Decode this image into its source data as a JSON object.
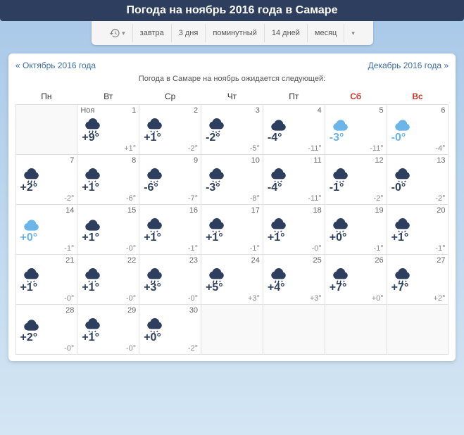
{
  "header": {
    "title": "Погода на ноябрь 2016 года в Самаре"
  },
  "nav": {
    "items": [
      "завтра",
      "3 дня",
      "поминутный",
      "14 дней",
      "месяц"
    ]
  },
  "monthNav": {
    "prev": "« Октябрь 2016 года",
    "next": "Декабрь 2016 года »"
  },
  "subtitle": "Погода в Самаре на ноябрь ожидается следующей:",
  "dayHeaders": [
    "Пн",
    "Вт",
    "Ср",
    "Чт",
    "Пт",
    "Сб",
    "Вс"
  ],
  "monthLabel": "Ноя",
  "colors": {
    "cloudDark": "#2d3e5e",
    "cloudLight": "#6bb5e8",
    "weekend": "#c0392b"
  },
  "days": [
    {
      "date": 1,
      "monthLabel": true,
      "icon": "rain",
      "hi": "+9°",
      "lo": "+1°",
      "hiColor": "#2d3e5e"
    },
    {
      "date": 2,
      "icon": "snow",
      "hi": "+1°",
      "lo": "-2°",
      "hiColor": "#2d3e5e"
    },
    {
      "date": 3,
      "icon": "snow",
      "hi": "-2°",
      "lo": "-5°",
      "hiColor": "#2d3e5e"
    },
    {
      "date": 4,
      "icon": "cloud",
      "hi": "-4°",
      "lo": "-11°",
      "hiColor": "#2d3e5e"
    },
    {
      "date": 5,
      "icon": "cloud-light",
      "hi": "-3°",
      "lo": "-11°",
      "hiColor": "#6bb5e8"
    },
    {
      "date": 6,
      "icon": "cloud-light",
      "hi": "-0°",
      "lo": "-4°",
      "hiColor": "#6bb5e8"
    },
    {
      "date": 7,
      "icon": "rain",
      "hi": "+2°",
      "lo": "-2°",
      "hiColor": "#2d3e5e"
    },
    {
      "date": 8,
      "icon": "snow",
      "hi": "+1°",
      "lo": "-6°",
      "hiColor": "#2d3e5e"
    },
    {
      "date": 9,
      "icon": "snow",
      "hi": "-6°",
      "lo": "-7°",
      "hiColor": "#2d3e5e"
    },
    {
      "date": 10,
      "icon": "snow",
      "hi": "-3°",
      "lo": "-8°",
      "hiColor": "#2d3e5e"
    },
    {
      "date": 11,
      "icon": "snow",
      "hi": "-4°",
      "lo": "-11°",
      "hiColor": "#2d3e5e"
    },
    {
      "date": 12,
      "icon": "snow",
      "hi": "-1°",
      "lo": "-2°",
      "hiColor": "#2d3e5e"
    },
    {
      "date": 13,
      "icon": "snow",
      "hi": "-0°",
      "lo": "-2°",
      "hiColor": "#2d3e5e"
    },
    {
      "date": 14,
      "icon": "cloud-light",
      "hi": "+0°",
      "lo": "-1°",
      "hiColor": "#6bb5e8"
    },
    {
      "date": 15,
      "icon": "cloud",
      "hi": "+1°",
      "lo": "-0°",
      "hiColor": "#2d3e5e"
    },
    {
      "date": 16,
      "icon": "snow",
      "hi": "+1°",
      "lo": "-1°",
      "hiColor": "#2d3e5e"
    },
    {
      "date": 17,
      "icon": "snow",
      "hi": "+1°",
      "lo": "-1°",
      "hiColor": "#2d3e5e"
    },
    {
      "date": 18,
      "icon": "snow",
      "hi": "+1°",
      "lo": "-0°",
      "hiColor": "#2d3e5e"
    },
    {
      "date": 19,
      "icon": "snow",
      "hi": "+0°",
      "lo": "-1°",
      "hiColor": "#2d3e5e"
    },
    {
      "date": 20,
      "icon": "snow",
      "hi": "+1°",
      "lo": "-1°",
      "hiColor": "#2d3e5e"
    },
    {
      "date": 21,
      "icon": "snow",
      "hi": "+1°",
      "lo": "-0°",
      "hiColor": "#2d3e5e"
    },
    {
      "date": 22,
      "icon": "snow",
      "hi": "+1°",
      "lo": "-0°",
      "hiColor": "#2d3e5e"
    },
    {
      "date": 23,
      "icon": "rain-snow",
      "hi": "+3°",
      "lo": "-0°",
      "hiColor": "#2d3e5e"
    },
    {
      "date": 24,
      "icon": "rain-snow",
      "hi": "+5°",
      "lo": "+3°",
      "hiColor": "#2d3e5e"
    },
    {
      "date": 25,
      "icon": "rain-snow",
      "hi": "+4°",
      "lo": "+3°",
      "hiColor": "#2d3e5e"
    },
    {
      "date": 26,
      "icon": "rain-snow",
      "hi": "+7°",
      "lo": "+0°",
      "hiColor": "#2d3e5e"
    },
    {
      "date": 27,
      "icon": "rain-snow",
      "hi": "+7°",
      "lo": "+2°",
      "hiColor": "#2d3e5e"
    },
    {
      "date": 28,
      "icon": "cloud",
      "hi": "+2°",
      "lo": "-0°",
      "hiColor": "#2d3e5e"
    },
    {
      "date": 29,
      "icon": "snow",
      "hi": "+1°",
      "lo": "-0°",
      "hiColor": "#2d3e5e"
    },
    {
      "date": 30,
      "icon": "snow",
      "hi": "+0°",
      "lo": "-2°",
      "hiColor": "#2d3e5e"
    }
  ]
}
